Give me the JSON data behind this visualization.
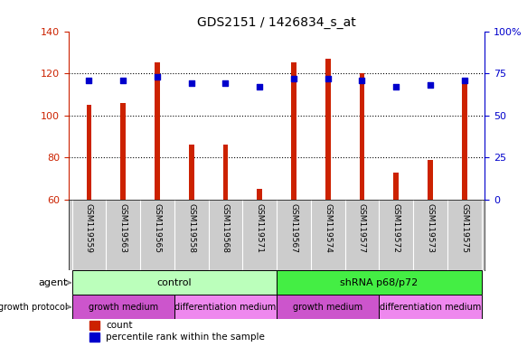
{
  "title": "GDS2151 / 1426834_s_at",
  "samples": [
    "GSM119559",
    "GSM119563",
    "GSM119565",
    "GSM119558",
    "GSM119568",
    "GSM119571",
    "GSM119567",
    "GSM119574",
    "GSM119577",
    "GSM119572",
    "GSM119573",
    "GSM119575"
  ],
  "counts": [
    105,
    106,
    125,
    86,
    86,
    65,
    125,
    127,
    120,
    73,
    79,
    115
  ],
  "percentiles": [
    71,
    71,
    73,
    69,
    69,
    67,
    72,
    72,
    71,
    67,
    68,
    71
  ],
  "bar_color": "#cc2200",
  "square_color": "#0000cc",
  "ylim_left": [
    60,
    140
  ],
  "ylim_right": [
    0,
    100
  ],
  "yticks_left": [
    60,
    80,
    100,
    120,
    140
  ],
  "yticks_right": [
    0,
    25,
    50,
    75,
    100
  ],
  "agent_groups": [
    {
      "label": "control",
      "start": 0,
      "end": 6,
      "color": "#bbffbb"
    },
    {
      "label": "shRNA p68/p72",
      "start": 6,
      "end": 12,
      "color": "#44ee44"
    }
  ],
  "protocol_groups": [
    {
      "label": "growth medium",
      "start": 0,
      "end": 3,
      "color": "#cc55cc"
    },
    {
      "label": "differentiation medium",
      "start": 3,
      "end": 6,
      "color": "#ee88ee"
    },
    {
      "label": "growth medium",
      "start": 6,
      "end": 9,
      "color": "#cc55cc"
    },
    {
      "label": "differentiation medium",
      "start": 9,
      "end": 12,
      "color": "#ee88ee"
    }
  ],
  "agent_label": "agent",
  "protocol_label": "growth protocol",
  "legend_count_label": "count",
  "legend_pct_label": "percentile rank within the sample",
  "bg_color": "#ffffff",
  "tick_color_left": "#cc2200",
  "tick_color_right": "#0000cc",
  "sample_cell_color": "#cccccc",
  "bar_width": 0.15
}
